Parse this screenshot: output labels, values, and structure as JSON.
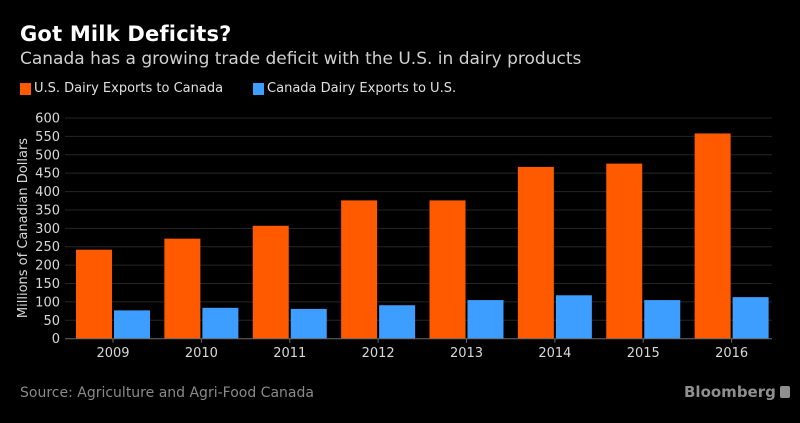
{
  "header": {
    "title": "Got Milk Deficits?",
    "subtitle": "Canada has a growing trade deficit with the U.S. in dairy products"
  },
  "footer": {
    "source": "Source: Agriculture and Agri-Food Canada",
    "brand": "Bloomberg"
  },
  "chart_data": {
    "type": "bar",
    "title": "Got Milk Deficits?",
    "subtitle": "Canada has a growing trade deficit with the U.S. in dairy products",
    "xlabel": "",
    "ylabel": "Millions of Canadian Dollars",
    "categories": [
      "2009",
      "2010",
      "2011",
      "2012",
      "2013",
      "2014",
      "2015",
      "2016"
    ],
    "series": [
      {
        "name": "U.S. Dairy Exports to Canada",
        "color": "#ff5a00",
        "values": [
          242,
          272,
          307,
          376,
          376,
          467,
          476,
          558
        ]
      },
      {
        "name": "Canada Dairy Exports to U.S.",
        "color": "#3e9eff",
        "values": [
          77,
          84,
          81,
          91,
          105,
          118,
          105,
          113
        ]
      }
    ],
    "ylim": [
      0,
      600
    ],
    "yticks": [
      0,
      50,
      100,
      150,
      200,
      250,
      300,
      350,
      400,
      450,
      500,
      550,
      600
    ],
    "grid": true,
    "legend_position": "top-left"
  }
}
